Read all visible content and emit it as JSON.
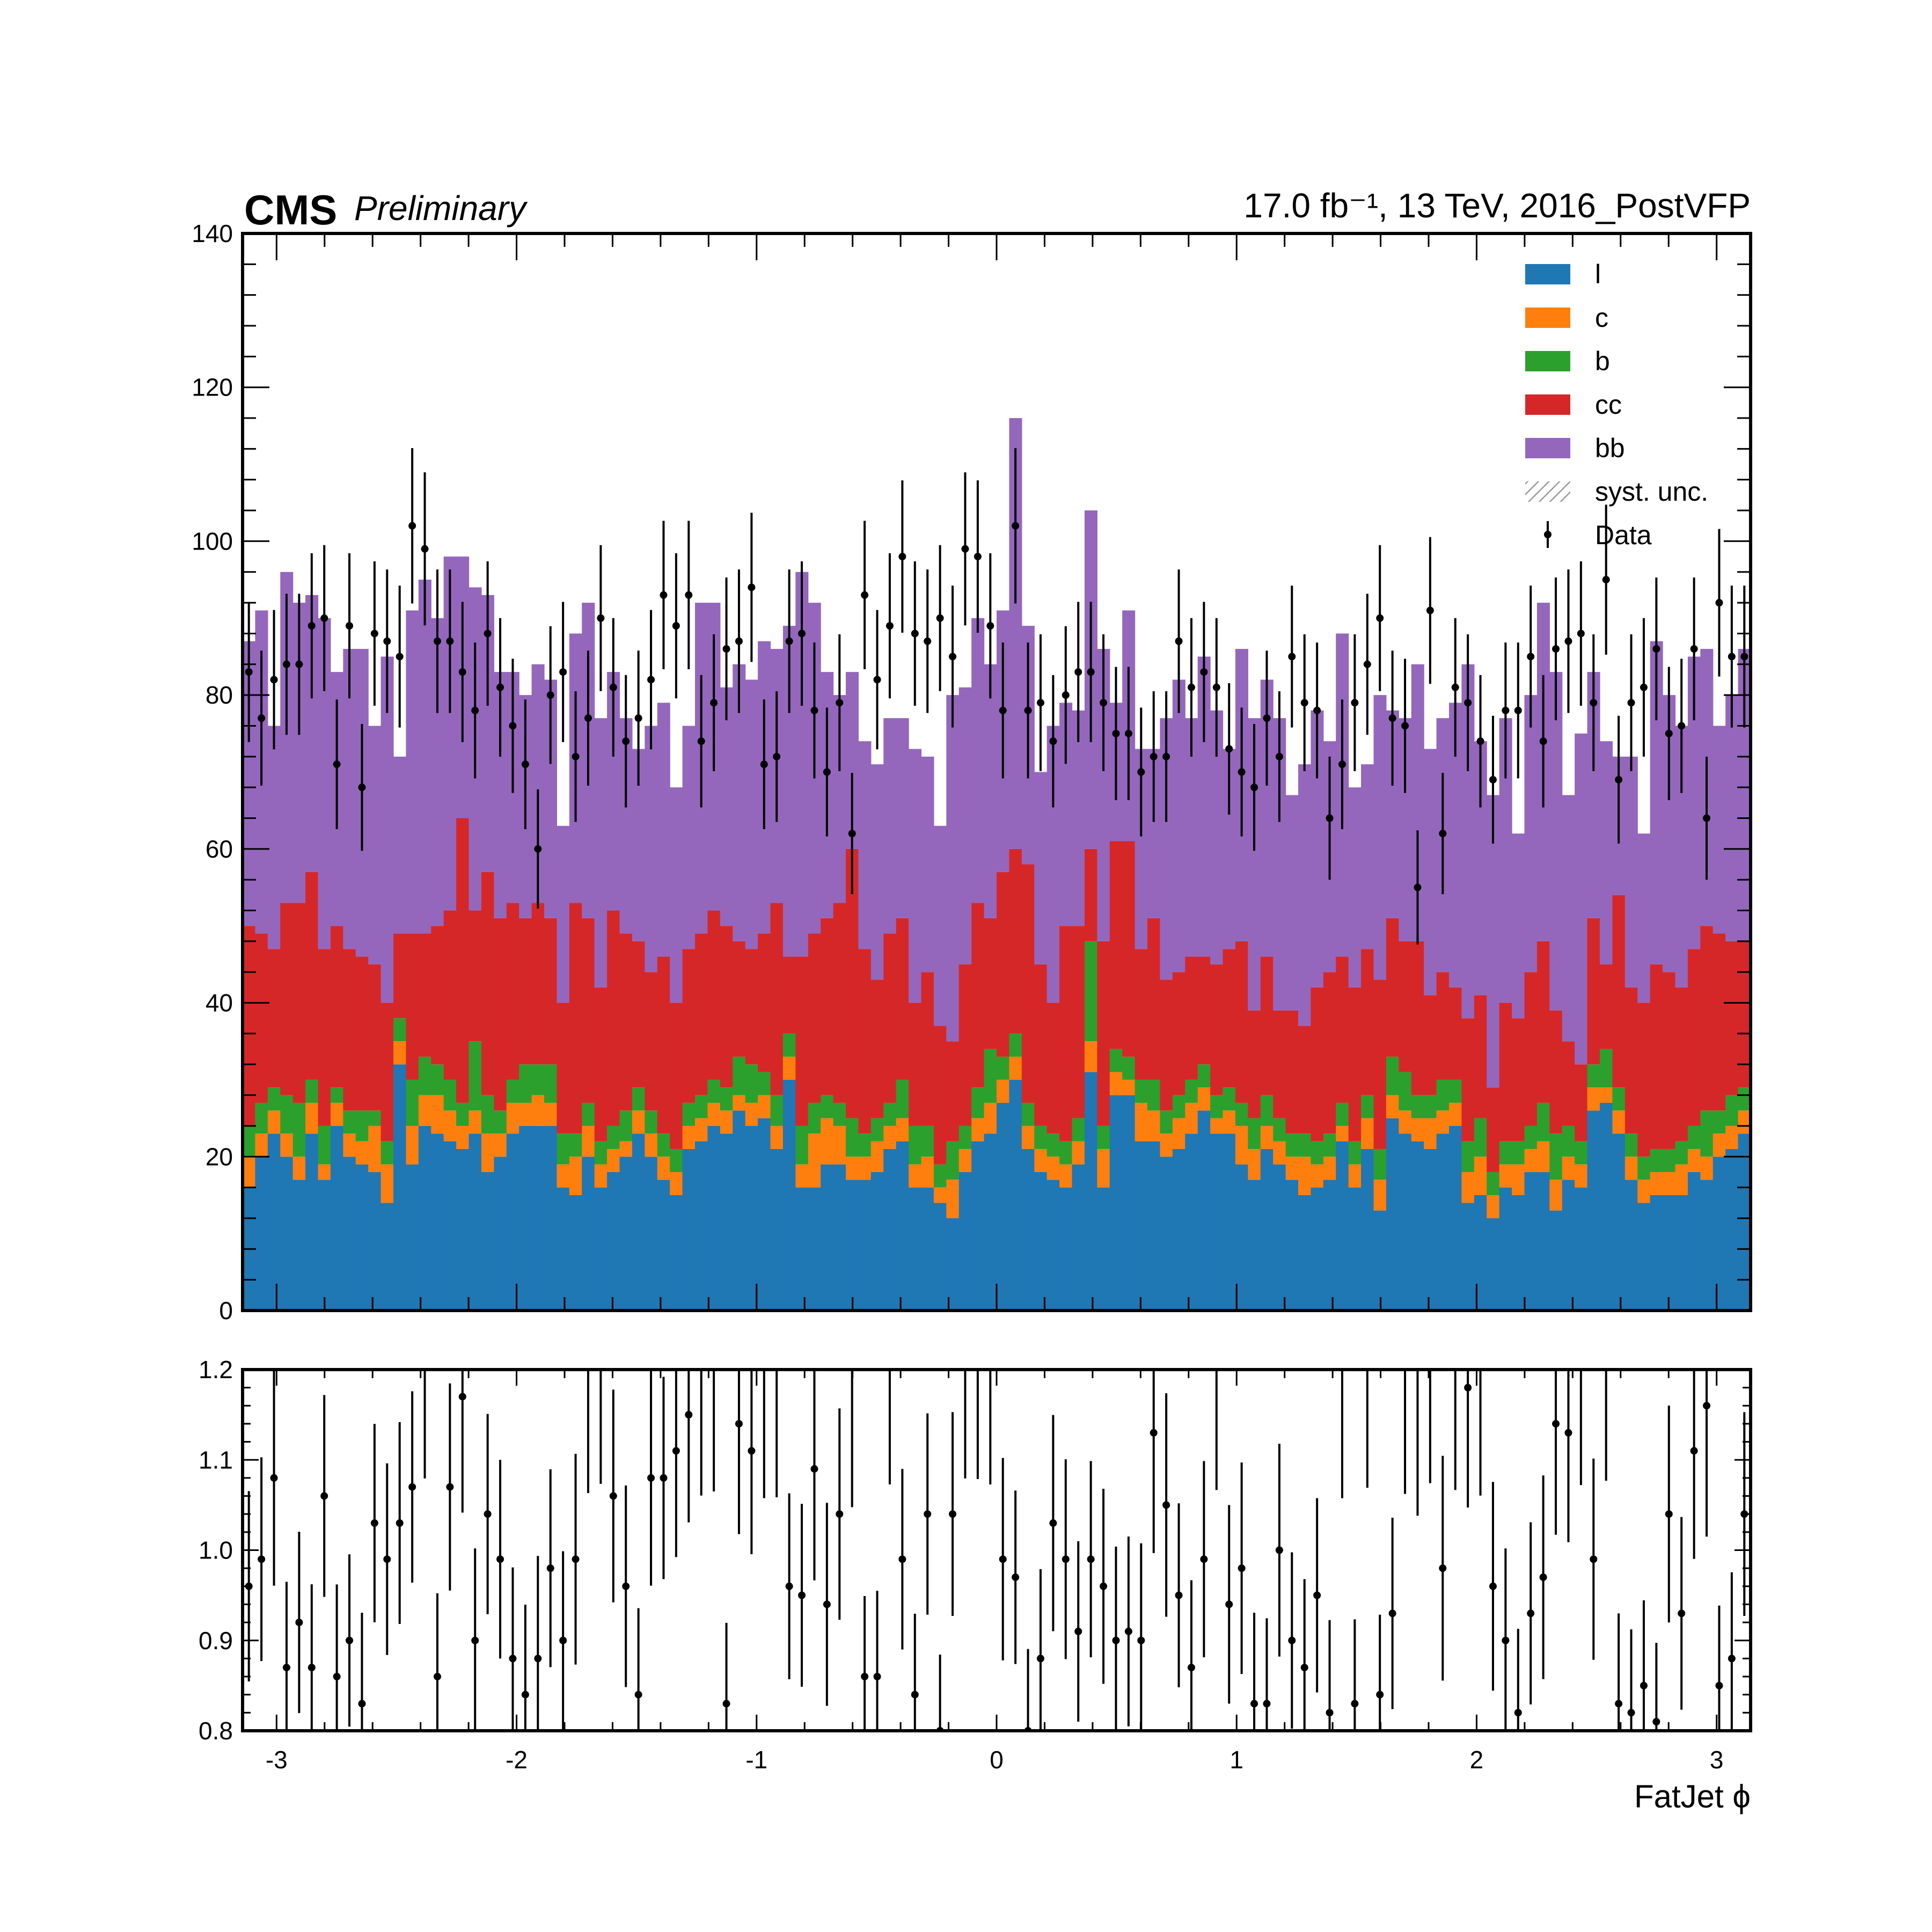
{
  "header": {
    "experiment": "CMS",
    "status": "Preliminary",
    "lumi_text": "17.0 fb⁻¹, 13 TeV, 2016_PostVFP"
  },
  "colors": {
    "l": "#1f77b4",
    "c": "#ff7f0e",
    "b": "#2ca02c",
    "cc": "#d62728",
    "bb": "#9467bd",
    "data": "#000000",
    "unc": "#9a9a9a"
  },
  "chart_data": [
    {
      "type": "bar",
      "subtype": "stacked-histogram",
      "xlim": [
        -3.1416,
        3.1416
      ],
      "ylim": [
        0,
        140
      ],
      "n_bins": 120,
      "xticks": [
        -3,
        -2,
        -1,
        0,
        1,
        2,
        3
      ],
      "xticks_labels": [
        "-3",
        "-2",
        "-1",
        "0",
        "1",
        "2",
        "3"
      ],
      "yticks": [
        0,
        20,
        40,
        60,
        80,
        100,
        120,
        140
      ],
      "yticks_labels": [
        "0",
        "20",
        "40",
        "60",
        "80",
        "100",
        "120",
        "140"
      ],
      "legend": {
        "placement": "top-right",
        "entries": [
          "l",
          "c",
          "b",
          "cc",
          "bb",
          "syst. unc.",
          "Data"
        ]
      },
      "series": [
        {
          "name": "l",
          "values": [
            16,
            20,
            23,
            20,
            17,
            23,
            17,
            24,
            20,
            19,
            18,
            14,
            32,
            19,
            24,
            23,
            22,
            21,
            23,
            18,
            20,
            23,
            24,
            24,
            24,
            16,
            15,
            20,
            16,
            18,
            20,
            23,
            20,
            17,
            15,
            21,
            22,
            24,
            23,
            26,
            24,
            25,
            21,
            30,
            16,
            16,
            19,
            19,
            17,
            17,
            18,
            21,
            22,
            16,
            16,
            14,
            12,
            18,
            22,
            23,
            27,
            30,
            21,
            18,
            17,
            16,
            19,
            31,
            16,
            28,
            28,
            22,
            22,
            20,
            21,
            23,
            26,
            23,
            23,
            19,
            17,
            21,
            19,
            17,
            15,
            16,
            17,
            22,
            16,
            21,
            13,
            25,
            23,
            22,
            21,
            23,
            24,
            14,
            15,
            12,
            16,
            15,
            18,
            18,
            13,
            17,
            16,
            26,
            27,
            23,
            17,
            14,
            15,
            15,
            15,
            18,
            17,
            20,
            21,
            23
          ]
        },
        {
          "name": "c",
          "values": [
            4,
            3,
            3,
            3,
            3,
            4,
            2,
            3,
            3,
            3,
            6,
            5,
            3,
            5,
            4,
            5,
            4,
            3,
            3,
            5,
            3,
            4,
            3,
            4,
            3,
            3,
            5,
            4,
            3,
            3,
            2,
            3,
            3,
            3,
            3,
            3,
            3,
            3,
            3,
            2,
            3,
            3,
            3,
            3,
            3,
            7,
            6,
            5,
            3,
            3,
            4,
            3,
            3,
            3,
            4,
            2,
            5,
            3,
            3,
            4,
            3,
            3,
            3,
            3,
            3,
            3,
            3,
            4,
            5,
            3,
            2,
            5,
            4,
            3,
            4,
            4,
            3,
            2,
            3,
            5,
            4,
            3,
            3,
            3,
            5,
            3,
            3,
            2,
            3,
            4,
            4,
            3,
            3,
            3,
            4,
            3,
            3,
            4,
            5,
            3,
            3,
            4,
            3,
            4,
            4,
            3,
            3,
            3,
            2,
            3,
            3,
            3,
            3,
            3,
            4,
            3,
            3,
            3,
            3,
            3
          ]
        },
        {
          "name": "b",
          "values": [
            4,
            4,
            3,
            5,
            7,
            3,
            5,
            2,
            3,
            4,
            2,
            3,
            3,
            6,
            5,
            4,
            4,
            3,
            9,
            5,
            3,
            3,
            5,
            4,
            5,
            4,
            3,
            3,
            3,
            3,
            4,
            3,
            3,
            3,
            3,
            3,
            3,
            3,
            3,
            5,
            5,
            3,
            4,
            3,
            5,
            4,
            3,
            3,
            5,
            3,
            3,
            3,
            5,
            5,
            4,
            3,
            5,
            3,
            4,
            7,
            3,
            3,
            3,
            3,
            3,
            3,
            3,
            13,
            3,
            3,
            3,
            3,
            4,
            3,
            3,
            3,
            3,
            3,
            3,
            3,
            4,
            4,
            3,
            3,
            3,
            3,
            3,
            3,
            3,
            3,
            4,
            5,
            5,
            3,
            3,
            4,
            3,
            4,
            5,
            3,
            3,
            3,
            3,
            5,
            6,
            4,
            3,
            3,
            5,
            3,
            3,
            3,
            3,
            3,
            3,
            3,
            6,
            3,
            4,
            3
          ]
        },
        {
          "name": "cc",
          "values": [
            26,
            22,
            18,
            25,
            26,
            27,
            23,
            21,
            21,
            20,
            19,
            18,
            11,
            19,
            16,
            18,
            22,
            37,
            17,
            29,
            25,
            23,
            19,
            21,
            19,
            17,
            30,
            24,
            20,
            28,
            23,
            19,
            18,
            23,
            19,
            20,
            21,
            22,
            21,
            15,
            15,
            18,
            25,
            10,
            22,
            22,
            23,
            26,
            35,
            24,
            18,
            22,
            21,
            16,
            20,
            18,
            13,
            21,
            24,
            17,
            24,
            24,
            31,
            21,
            17,
            28,
            25,
            12,
            24,
            27,
            28,
            17,
            21,
            17,
            16,
            16,
            14,
            17,
            18,
            21,
            14,
            18,
            14,
            16,
            14,
            20,
            21,
            19,
            20,
            19,
            22,
            18,
            17,
            20,
            13,
            14,
            12,
            16,
            16,
            11,
            18,
            16,
            20,
            21,
            16,
            11,
            10,
            19,
            11,
            25,
            19,
            20,
            24,
            23,
            20,
            23,
            24,
            23,
            20,
            19
          ]
        },
        {
          "name": "bb",
          "values": [
            37,
            42,
            29,
            43,
            39,
            36,
            43,
            33,
            39,
            40,
            31,
            45,
            23,
            42,
            46,
            40,
            46,
            34,
            42,
            36,
            32,
            30,
            29,
            31,
            31,
            23,
            35,
            41,
            35,
            31,
            28,
            25,
            32,
            33,
            28,
            29,
            43,
            40,
            31,
            36,
            35,
            38,
            33,
            43,
            50,
            43,
            32,
            27,
            23,
            27,
            28,
            28,
            26,
            33,
            28,
            26,
            45,
            36,
            37,
            33,
            34,
            56,
            31,
            25,
            36,
            29,
            28,
            44,
            38,
            18,
            30,
            26,
            22,
            34,
            38,
            31,
            39,
            33,
            26,
            38,
            38,
            36,
            38,
            28,
            34,
            36,
            30,
            42,
            26,
            24,
            37,
            27,
            29,
            36,
            32,
            33,
            37,
            46,
            33,
            38,
            37,
            24,
            36,
            44,
            44,
            32,
            43,
            32,
            29,
            18,
            30,
            22,
            42,
            36,
            34,
            38,
            36,
            27,
            32,
            38
          ]
        },
        {
          "name": "Data",
          "values": [
            83,
            77,
            82,
            84,
            84,
            89,
            90,
            71,
            89,
            68,
            88,
            87,
            85,
            102,
            99,
            87,
            87,
            83,
            78,
            88,
            81,
            76,
            71,
            60,
            80,
            83,
            72,
            77,
            90,
            81,
            74,
            77,
            82,
            93,
            89,
            93,
            74,
            79,
            86,
            87,
            94,
            71,
            72,
            87,
            88,
            78,
            70,
            79,
            62,
            93,
            82,
            89,
            98,
            88,
            87,
            90,
            85,
            99,
            98,
            89,
            78,
            102,
            78,
            79,
            74,
            80,
            83,
            83,
            79,
            75,
            75,
            70,
            72,
            72,
            87,
            81,
            83,
            81,
            73,
            70,
            68,
            77,
            72,
            85,
            79,
            78,
            64,
            71,
            79,
            84,
            90,
            77,
            76,
            55,
            91,
            62,
            81,
            79,
            74,
            69,
            78,
            78,
            85,
            74,
            86,
            87,
            88,
            79,
            95,
            69,
            79,
            81,
            86,
            75,
            76,
            86,
            64,
            92,
            85,
            85
          ]
        }
      ],
      "syst_unc": "syst. unc."
    },
    {
      "type": "scatter",
      "subtype": "ratio",
      "xlim": [
        -3.1416,
        3.1416
      ],
      "ylim": [
        0.8,
        1.2
      ],
      "xlabel": "FatJet ϕ",
      "xticks": [
        -3,
        -2,
        -1,
        0,
        1,
        2,
        3
      ],
      "xticks_labels": [
        "-3",
        "-2",
        "-1",
        "0",
        "1",
        "2",
        "3"
      ],
      "yticks": [
        0.8,
        0.9,
        1.0,
        1.1,
        1.2
      ],
      "yticks_labels": [
        "0.8",
        "0.9",
        "1.0",
        "1.1",
        "1.2"
      ],
      "values": [
        0.96,
        0.99,
        1.08,
        0.87,
        0.92,
        0.87,
        1.06,
        0.86,
        0.9,
        0.83,
        1.03,
        0.99,
        1.03,
        1.07,
        1.2,
        0.86,
        1.07,
        1.17,
        0.9,
        1.04,
        0.99,
        0.88,
        0.84,
        0.88,
        0.98,
        0.9,
        0.99,
        1.2,
        1.2,
        1.06,
        0.96,
        0.84,
        1.08,
        1.08,
        1.11,
        1.15,
        1.2,
        1.2,
        0.83,
        1.14,
        1.11,
        1.2,
        1.2,
        0.96,
        0.95,
        1.09,
        0.94,
        1.04,
        1.2,
        0.86,
        0.86,
        1.2,
        0.99,
        0.84,
        1.04,
        0.8,
        1.04,
        1.2,
        1.2,
        1.2,
        0.99,
        0.97,
        0.8,
        0.88,
        1.03,
        0.99,
        0.91,
        0.99,
        0.96,
        0.9,
        0.91,
        0.9,
        1.13,
        1.05,
        0.95,
        0.87,
        0.99,
        1.2,
        0.94,
        0.98,
        0.83,
        0.83,
        1.0,
        0.9,
        0.87,
        0.95,
        0.82,
        1.2,
        0.83,
        1.2,
        0.84,
        0.93,
        1.2,
        1.2,
        1.2,
        0.98,
        1.2,
        1.18,
        1.2,
        0.96,
        0.9,
        0.82,
        0.93,
        0.97,
        1.14,
        1.13,
        1.2,
        0.99,
        1.2,
        0.83,
        0.82,
        0.85,
        0.81,
        1.04,
        0.93,
        1.11,
        1.16,
        0.85,
        0.88,
        1.04,
        1.05,
        1.1
      ]
    }
  ]
}
